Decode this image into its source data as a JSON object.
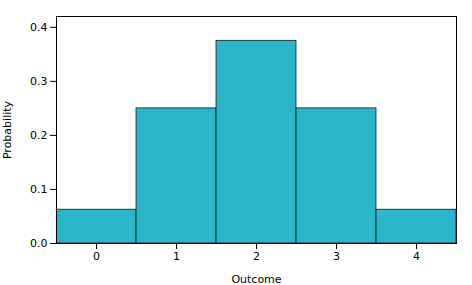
{
  "chart_data": {
    "type": "bar",
    "x": [
      0,
      1,
      2,
      3,
      4
    ],
    "values": [
      0.0625,
      0.25,
      0.375,
      0.25,
      0.0625
    ],
    "color": "#2BB5C8",
    "xlabel": "Outcome",
    "ylabel": "Probability",
    "xlim": [
      -0.5,
      4.5
    ],
    "xticks": [
      0,
      1,
      2,
      3,
      4
    ],
    "ylim": [
      0.0,
      0.42
    ],
    "yticks": [
      {
        "value": 0.0,
        "label": "0.0"
      },
      {
        "value": 0.1,
        "label": "0.1"
      },
      {
        "value": 0.2,
        "label": "0.2"
      },
      {
        "value": 0.3,
        "label": "0.3"
      },
      {
        "value": 0.4,
        "label": "0.4"
      }
    ]
  }
}
